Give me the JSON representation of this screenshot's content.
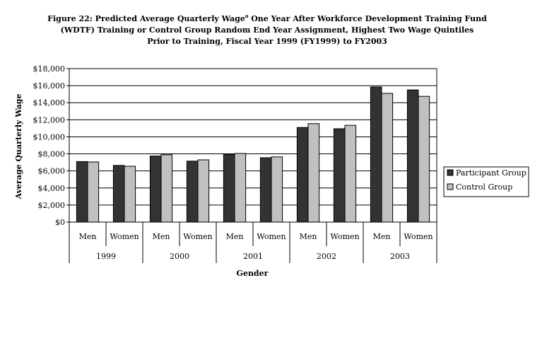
{
  "chart_data": {
    "type": "bar",
    "title": [
      "Figure 22: Predicted Average Quarterly Wage",
      "(WDTF) Training or Control Group Random End Year Assignment, Highest Two Wage Quintiles",
      "Prior to Training, Fiscal Year 1999 (FY1999) to FY2003"
    ],
    "title_superscript": "a",
    "title_line1_rest": " One Year After Workforce Development Training Fund",
    "xlabel": "Gender",
    "ylabel": "Average Quarterly Wage",
    "ylim": [
      0,
      18000
    ],
    "yticks": [
      "$0",
      "$2,000",
      "$4,000",
      "$6,000",
      "$8,000",
      "$10,000",
      "$12,000",
      "$14,000",
      "$16,000",
      "$18,000"
    ],
    "ytick_values": [
      0,
      2000,
      4000,
      6000,
      8000,
      10000,
      12000,
      14000,
      16000,
      18000
    ],
    "grid": "horizontal",
    "legend_position": "right",
    "categories": [
      "Men",
      "Women",
      "Men",
      "Women",
      "Men",
      "Women",
      "Men",
      "Women",
      "Men",
      "Women"
    ],
    "groups": [
      "1999",
      "2000",
      "2001",
      "2002",
      "2003"
    ],
    "series": [
      {
        "name": "Participant Group",
        "color": "#333333",
        "values": [
          7100,
          6650,
          7750,
          7150,
          7950,
          7550,
          11100,
          10950,
          15850,
          15500
        ]
      },
      {
        "name": "Control Group",
        "color": "#c0c0c0",
        "values": [
          7050,
          6550,
          7900,
          7300,
          8050,
          7650,
          11550,
          11350,
          15100,
          14750
        ]
      }
    ]
  }
}
